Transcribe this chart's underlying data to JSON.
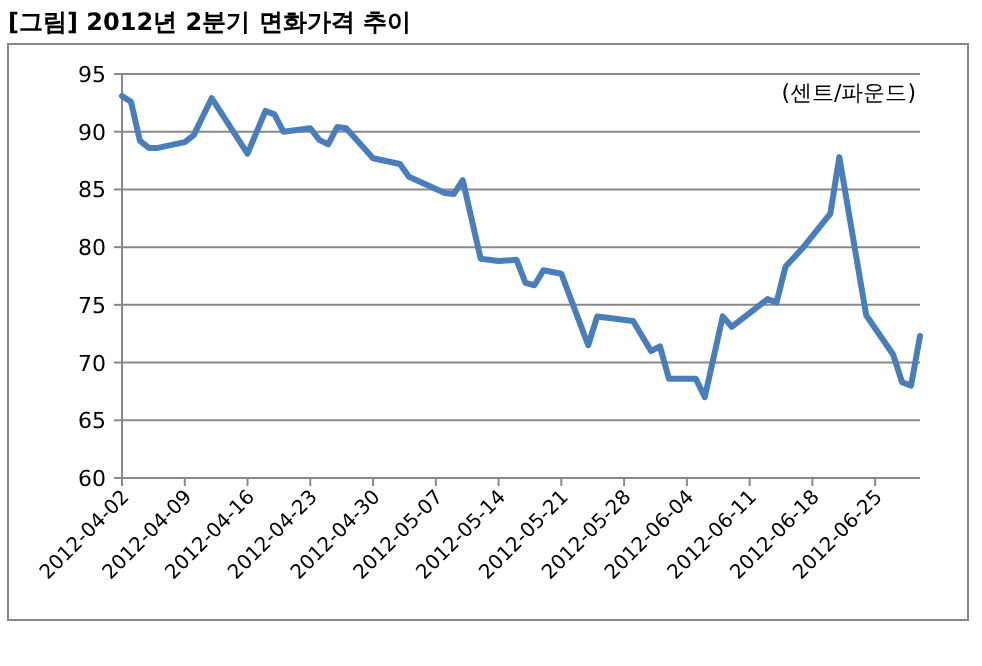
{
  "chart_data": {
    "type": "line",
    "title": "[그림] 2012년 2분기 면화가격 추이",
    "annotations": [
      "(센트/파운드)"
    ],
    "x": [
      "2012-04-02",
      "2012-04-03",
      "2012-04-04",
      "2012-04-05",
      "2012-04-06",
      "2012-04-09",
      "2012-04-10",
      "2012-04-12",
      "2012-04-16",
      "2012-04-18",
      "2012-04-19",
      "2012-04-20",
      "2012-04-23",
      "2012-04-24",
      "2012-04-25",
      "2012-04-26",
      "2012-04-27",
      "2012-04-30",
      "2012-05-03",
      "2012-05-04",
      "2012-05-08",
      "2012-05-09",
      "2012-05-10",
      "2012-05-12",
      "2012-05-14",
      "2012-05-16",
      "2012-05-17",
      "2012-05-18",
      "2012-05-19",
      "2012-05-21",
      "2012-05-24",
      "2012-05-25",
      "2012-05-29",
      "2012-05-31",
      "2012-06-01",
      "2012-06-02",
      "2012-06-05",
      "2012-06-06",
      "2012-06-08",
      "2012-06-09",
      "2012-06-13",
      "2012-06-14",
      "2012-06-15",
      "2012-06-17",
      "2012-06-20",
      "2012-06-21",
      "2012-06-24",
      "2012-06-27",
      "2012-06-28",
      "2012-06-29",
      "2012-06-30"
    ],
    "series": [
      {
        "color": "#4a7ebb",
        "values": [
          93.1,
          92.6,
          89.2,
          88.6,
          88.6,
          89.1,
          89.7,
          92.9,
          88.1,
          91.8,
          91.5,
          90.0,
          90.3,
          89.3,
          88.9,
          90.4,
          90.3,
          87.7,
          87.2,
          86.1,
          84.7,
          84.6,
          85.8,
          79.0,
          78.8,
          78.9,
          76.9,
          76.7,
          78.0,
          77.7,
          71.5,
          74.0,
          73.6,
          71.0,
          71.4,
          68.6,
          68.6,
          67.0,
          74.0,
          73.1,
          75.5,
          75.2,
          78.3,
          80.0,
          82.9,
          87.8,
          74.1,
          70.7,
          68.3,
          68.0,
          72.3
        ]
      }
    ],
    "xlim": [
      "2012-04-02",
      "2012-06-30"
    ],
    "xticks": [
      "2012-04-02",
      "2012-04-09",
      "2012-04-16",
      "2012-04-23",
      "2012-04-30",
      "2012-05-07",
      "2012-05-14",
      "2012-05-21",
      "2012-05-28",
      "2012-06-04",
      "2012-06-11",
      "2012-06-18",
      "2012-06-25"
    ],
    "ylim": [
      60,
      95
    ],
    "yticks": [
      60,
      65,
      70,
      75,
      80,
      85,
      90,
      95
    ],
    "grid": "y",
    "marker": "none",
    "line_style": "solid"
  }
}
